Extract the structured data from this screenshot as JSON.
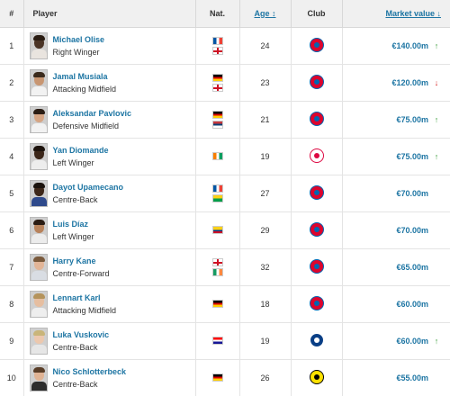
{
  "header": {
    "rank": "#",
    "player": "Player",
    "nat": "Nat.",
    "age": "Age",
    "age_sort": "↕",
    "club": "Club",
    "value": "Market value",
    "value_sort": "↓"
  },
  "rows": [
    {
      "rank": "1",
      "name": "Michael Olise",
      "position": "Right Winger",
      "age": "24",
      "value": "€140.00m",
      "trend": "up",
      "trend_glyph": "↑",
      "flags": [
        "france",
        "england"
      ],
      "club": "bayern-icon"
    },
    {
      "rank": "2",
      "name": "Jamal Musiala",
      "position": "Attacking Midfield",
      "age": "23",
      "value": "€120.00m",
      "trend": "down",
      "trend_glyph": "↓",
      "flags": [
        "germany",
        "england"
      ],
      "club": "bayern-icon"
    },
    {
      "rank": "3",
      "name": "Aleksandar Pavlovic",
      "position": "Defensive Midfield",
      "age": "21",
      "value": "€75.00m",
      "trend": "up",
      "trend_glyph": "↑",
      "flags": [
        "germany",
        "serbia"
      ],
      "club": "bayern-icon"
    },
    {
      "rank": "4",
      "name": "Yan Diomande",
      "position": "Left Winger",
      "age": "19",
      "value": "€75.00m",
      "trend": "up",
      "trend_glyph": "↑",
      "flags": [
        "ivory-coast"
      ],
      "club": "leipzig-icon"
    },
    {
      "rank": "5",
      "name": "Dayot Upamecano",
      "position": "Centre-Back",
      "age": "27",
      "value": "€70.00m",
      "trend": "none",
      "trend_glyph": "",
      "flags": [
        "france",
        "guinea-bissau"
      ],
      "club": "bayern-icon"
    },
    {
      "rank": "6",
      "name": "Luis Díaz",
      "position": "Left Winger",
      "age": "29",
      "value": "€70.00m",
      "trend": "none",
      "trend_glyph": "",
      "flags": [
        "colombia"
      ],
      "club": "bayern-icon"
    },
    {
      "rank": "7",
      "name": "Harry Kane",
      "position": "Centre-Forward",
      "age": "32",
      "value": "€65.00m",
      "trend": "none",
      "trend_glyph": "",
      "flags": [
        "england",
        "ireland"
      ],
      "club": "bayern-icon"
    },
    {
      "rank": "8",
      "name": "Lennart Karl",
      "position": "Attacking Midfield",
      "age": "18",
      "value": "€60.00m",
      "trend": "none",
      "trend_glyph": "",
      "flags": [
        "germany"
      ],
      "club": "bayern-icon"
    },
    {
      "rank": "9",
      "name": "Luka Vuskovic",
      "position": "Centre-Back",
      "age": "19",
      "value": "€60.00m",
      "trend": "up",
      "trend_glyph": "↑",
      "flags": [
        "croatia"
      ],
      "club": "hamburg-icon"
    },
    {
      "rank": "10",
      "name": "Nico Schlotterbeck",
      "position": "Centre-Back",
      "age": "26",
      "value": "€55.00m",
      "trend": "none",
      "trend_glyph": "",
      "flags": [
        "germany"
      ],
      "club": "dortmund-icon"
    }
  ],
  "colors": {
    "link": "#1d75a3",
    "trend_up": "#3a9d3a",
    "trend_down": "#d62020",
    "header_bg": "#f0f0f0"
  }
}
